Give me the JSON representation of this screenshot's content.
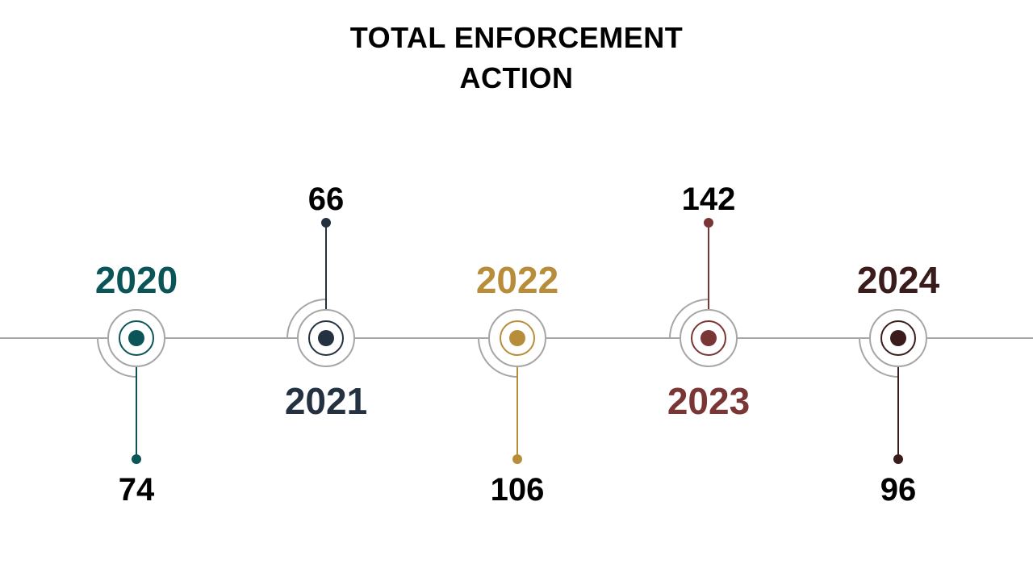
{
  "title": {
    "line1": "TOTAL ENFORCEMENT",
    "line2": "ACTION"
  },
  "chart_data": {
    "type": "timeline",
    "categories": [
      "2020",
      "2021",
      "2022",
      "2023",
      "2024"
    ],
    "values": [
      74,
      66,
      106,
      142,
      96
    ]
  },
  "milestones": [
    {
      "year": "2020",
      "value": "74",
      "color": "#0b5458"
    },
    {
      "year": "2021",
      "value": "66",
      "color": "#243140"
    },
    {
      "year": "2022",
      "value": "106",
      "color": "#b88d3a"
    },
    {
      "year": "2023",
      "value": "142",
      "color": "#7a3535"
    },
    {
      "year": "2024",
      "value": "96",
      "color": "#3a1c1c"
    }
  ]
}
